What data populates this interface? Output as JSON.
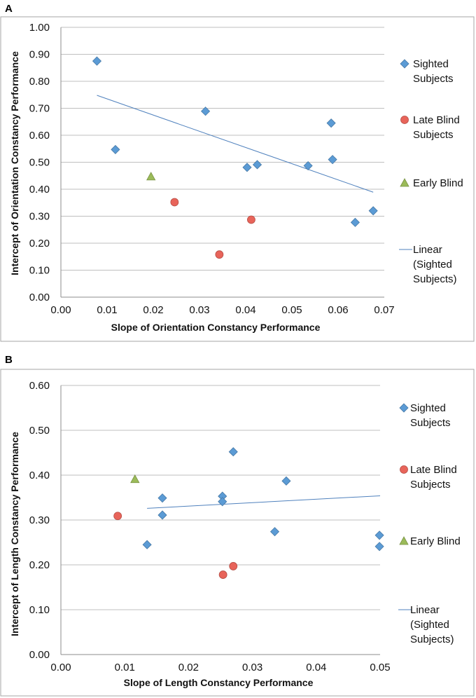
{
  "chart_data": [
    {
      "panel": "A",
      "type": "scatter",
      "xlabel": "Slope of Orientation Constancy Performance",
      "ylabel": "Intercept of Orientation Constancy Performance",
      "xlim": [
        0,
        0.07
      ],
      "ylim": [
        0,
        1
      ],
      "x_ticks": [
        "0.00",
        "0.01",
        "0.02",
        "0.03",
        "0.04",
        "0.05",
        "0.06",
        "0.07"
      ],
      "y_ticks": [
        "0.00",
        "0.10",
        "0.20",
        "0.30",
        "0.40",
        "0.50",
        "0.60",
        "0.70",
        "0.80",
        "0.90",
        "1.00"
      ],
      "grid": "horizontal",
      "legend_position": "right",
      "series": [
        {
          "name": "Sighted Subjects",
          "legend_lines": [
            "Sighted",
            "Subjects"
          ],
          "marker": "diamond",
          "color": "#5b9bd5",
          "points": [
            [
              0.0078,
              0.875
            ],
            [
              0.0118,
              0.547
            ],
            [
              0.0313,
              0.689
            ],
            [
              0.0403,
              0.481
            ],
            [
              0.0425,
              0.491
            ],
            [
              0.0535,
              0.487
            ],
            [
              0.0585,
              0.645
            ],
            [
              0.0588,
              0.51
            ],
            [
              0.0637,
              0.277
            ],
            [
              0.0676,
              0.32
            ]
          ]
        },
        {
          "name": "Late Blind Subjects",
          "legend_lines": [
            "Late Blind",
            "Subjects"
          ],
          "marker": "circle",
          "color": "#e8645a",
          "points": [
            [
              0.0246,
              0.352
            ],
            [
              0.0343,
              0.158
            ],
            [
              0.0412,
              0.287
            ]
          ]
        },
        {
          "name": "Early Blind",
          "legend_lines": [
            "Early Blind"
          ],
          "marker": "triangle",
          "color": "#9bbb59",
          "points": [
            [
              0.0195,
              0.447
            ]
          ]
        }
      ],
      "trendline": {
        "name": "Linear (Sighted Subjects)",
        "legend_lines": [
          "Linear",
          "(Sighted",
          "Subjects)"
        ],
        "color": "#4f81bd",
        "x": [
          0.0078,
          0.0676
        ],
        "y": [
          0.748,
          0.389
        ]
      }
    },
    {
      "panel": "B",
      "type": "scatter",
      "xlabel": "Slope of Length Constancy Performance",
      "ylabel": "Intercept of Length Constancy Performance",
      "xlim": [
        0,
        0.05
      ],
      "ylim": [
        0,
        0.6
      ],
      "x_ticks": [
        "0.00",
        "0.01",
        "0.02",
        "0.03",
        "0.04",
        "0.05"
      ],
      "y_ticks": [
        "0.00",
        "0.10",
        "0.20",
        "0.30",
        "0.40",
        "0.50",
        "0.60"
      ],
      "grid": "horizontal",
      "legend_position": "right",
      "series": [
        {
          "name": "Sighted Subjects",
          "legend_lines": [
            "Sighted",
            "Subjects"
          ],
          "marker": "diamond",
          "color": "#5b9bd5",
          "points": [
            [
              0.0135,
              0.245
            ],
            [
              0.0159,
              0.349
            ],
            [
              0.0159,
              0.311
            ],
            [
              0.0253,
              0.353
            ],
            [
              0.0253,
              0.341
            ],
            [
              0.027,
              0.452
            ],
            [
              0.0335,
              0.274
            ],
            [
              0.0353,
              0.387
            ],
            [
              0.0499,
              0.266
            ],
            [
              0.0499,
              0.241
            ]
          ]
        },
        {
          "name": "Late Blind Subjects",
          "legend_lines": [
            "Late Blind",
            "Subjects"
          ],
          "marker": "circle",
          "color": "#e8645a",
          "points": [
            [
              0.0089,
              0.309
            ],
            [
              0.0254,
              0.178
            ],
            [
              0.027,
              0.197
            ]
          ]
        },
        {
          "name": "Early Blind",
          "legend_lines": [
            "Early Blind"
          ],
          "marker": "triangle",
          "color": "#9bbb59",
          "points": [
            [
              0.0116,
              0.391
            ]
          ]
        }
      ],
      "trendline": {
        "name": "Linear (Sighted Subjects)",
        "legend_lines": [
          "Linear",
          "(Sighted",
          "Subjects)"
        ],
        "color": "#4f81bd",
        "x": [
          0.0135,
          0.05
        ],
        "y": [
          0.326,
          0.354
        ]
      }
    }
  ]
}
